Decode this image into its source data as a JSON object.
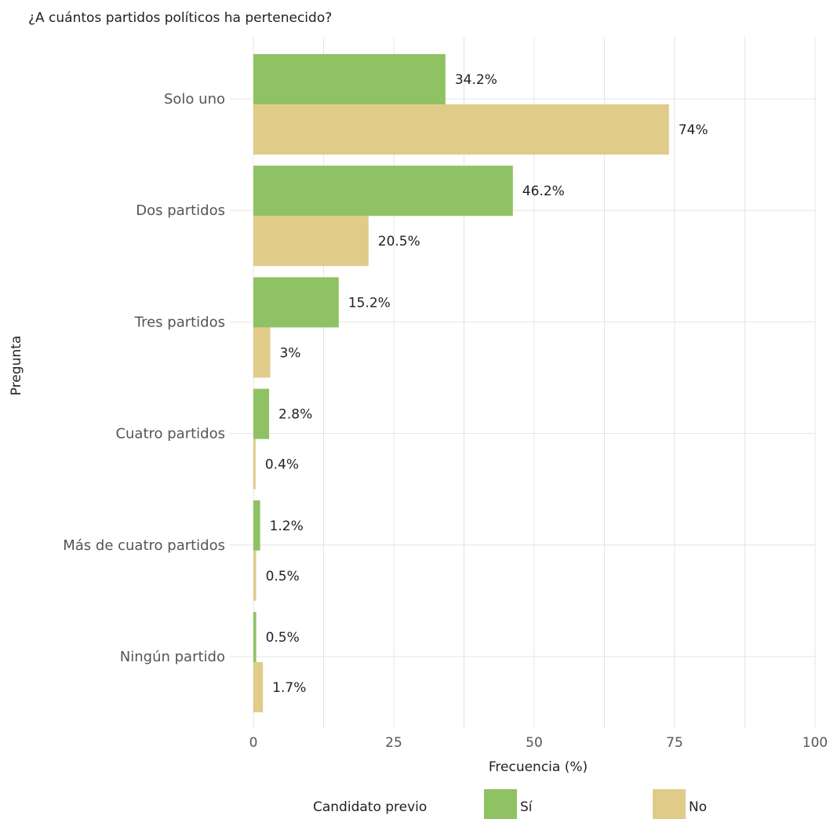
{
  "chart_data": {
    "type": "bar",
    "orientation": "horizontal",
    "title": "¿A cuántos partidos políticos ha pertenecido?",
    "xlabel": "Frecuencia (%)",
    "ylabel": "Pregunta",
    "xlim": [
      0,
      100
    ],
    "xticks": [
      0,
      25,
      50,
      75,
      100
    ],
    "grid": true,
    "categories": [
      "Solo uno",
      "Dos partidos",
      "Tres partidos",
      "Cuatro partidos",
      "Más de cuatro partidos",
      "Ningún partido"
    ],
    "series": [
      {
        "name": "Sí",
        "color": "#8fc263",
        "values": [
          34.2,
          46.2,
          15.2,
          2.8,
          1.2,
          0.5
        ],
        "labels": [
          "34.2%",
          "46.2%",
          "15.2%",
          "2.8%",
          "1.2%",
          "0.5%"
        ]
      },
      {
        "name": "No",
        "color": "#e0cb88",
        "values": [
          74,
          20.5,
          3,
          0.4,
          0.5,
          1.7
        ],
        "labels": [
          "74%",
          "20.5%",
          "3%",
          "0.4%",
          "0.5%",
          "1.7%"
        ]
      }
    ],
    "legend": {
      "title": "Candidato previo",
      "position": "bottom"
    }
  }
}
